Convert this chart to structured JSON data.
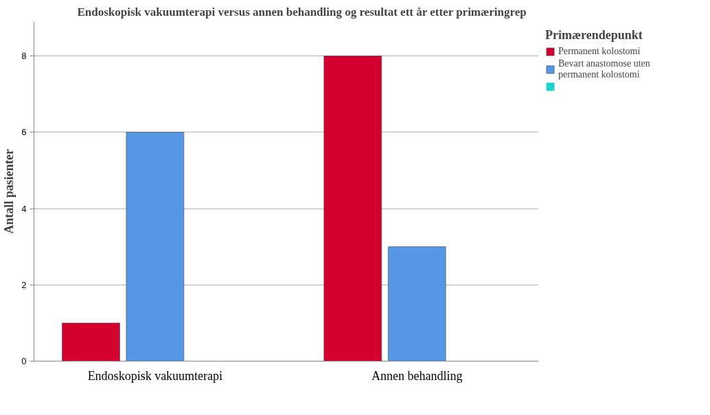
{
  "chart_data": {
    "type": "bar",
    "title": "Endoskopisk vakuumterapi versus annen behandling og resultat ett år etter primæringrep",
    "ylabel": "Antall pasienter",
    "legend_title": "Primærendepunkt",
    "categories": [
      "Endoskopisk vakuumterapi",
      "Annen behandling"
    ],
    "series": [
      {
        "name": "Permanent kolostomi",
        "color": "#d3002f",
        "values": [
          1,
          8
        ]
      },
      {
        "name": "Bevart anastomose uten permanent kolostomi",
        "color": "#5597e5",
        "values": [
          6,
          3
        ]
      },
      {
        "color": "#22d0d0",
        "values": [
          0,
          0
        ]
      }
    ],
    "ylim": [
      0,
      8.9
    ],
    "yticks": [
      0,
      2,
      4,
      6,
      8
    ],
    "grid": "y",
    "legend": "top right"
  }
}
